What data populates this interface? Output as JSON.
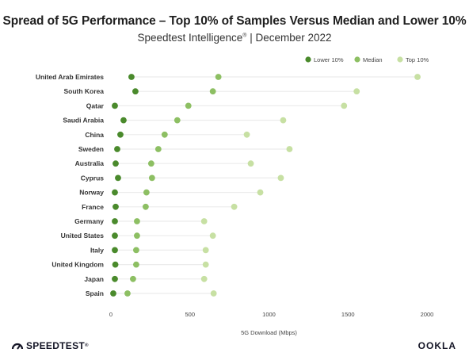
{
  "header": {
    "title": "Spread of 5G Performance – Top 10% of Samples Versus Median and Lower 10%",
    "subtitle_main": "Speedtest Intelligence",
    "subtitle_mark": "®",
    "subtitle_rest": " | December 2022"
  },
  "footer": {
    "left_brand": "SPEEDTEST",
    "left_mark": "®",
    "right_brand": "OOKLA"
  },
  "colors": {
    "lower": "#4a8a2c",
    "median": "#8dbf63",
    "top": "#c7e0a3",
    "connector": "#ececec"
  },
  "chart_data": {
    "type": "scatter",
    "xlabel": "5G Download (Mbps)",
    "xlim": [
      0,
      2000
    ],
    "xticks": [
      0,
      500,
      1000,
      1500,
      2000
    ],
    "legend_position": "top-right",
    "categories": [
      "United Arab Emirates",
      "South Korea",
      "Qatar",
      "Saudi Arabia",
      "China",
      "Sweden",
      "Australia",
      "Cyprus",
      "Norway",
      "France",
      "Germany",
      "United States",
      "Italy",
      "United Kingdom",
      "Japan",
      "Spain"
    ],
    "series": [
      {
        "name": "Lower 10%",
        "values": [
          130,
          155,
          25,
          80,
          60,
          40,
          30,
          45,
          25,
          30,
          25,
          25,
          25,
          28,
          25,
          15
        ]
      },
      {
        "name": "Median",
        "values": [
          680,
          645,
          490,
          420,
          340,
          300,
          255,
          260,
          225,
          220,
          165,
          165,
          160,
          160,
          140,
          105
        ]
      },
      {
        "name": "Top 10%",
        "values": [
          1940,
          1555,
          1475,
          1090,
          860,
          1130,
          885,
          1075,
          945,
          780,
          590,
          645,
          600,
          600,
          590,
          650
        ]
      }
    ]
  }
}
